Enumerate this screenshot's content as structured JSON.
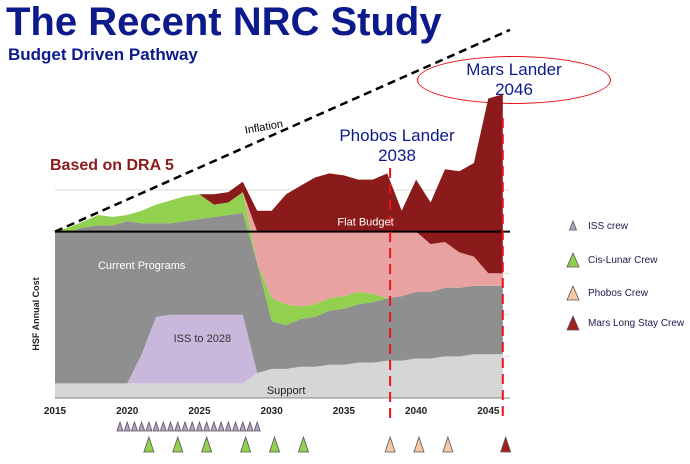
{
  "title": "The Recent NRC Study",
  "subtitle": "Budget Driven Pathway",
  "callouts": {
    "mars_lander": [
      "Mars Lander",
      "2046"
    ],
    "phobos_lander": [
      "Phobos Lander",
      "2038"
    ],
    "based_on": "Based on DRA 5"
  },
  "chart_data": {
    "type": "area",
    "ylabel": "HSF Annual Cost",
    "x_ticks": [
      "2015",
      "2020",
      "2025",
      "2030",
      "2035",
      "2040",
      "2045"
    ],
    "xlim": [
      2015,
      2046.5
    ],
    "ylim": [
      0,
      100
    ],
    "years": [
      2015,
      2016,
      2017,
      2018,
      2019,
      2020,
      2021,
      2022,
      2023,
      2024,
      2025,
      2026,
      2027,
      2028,
      2029,
      2030,
      2031,
      2032,
      2033,
      2034,
      2035,
      2036,
      2037,
      2038,
      2039,
      2040,
      2041,
      2042,
      2043,
      2044,
      2045,
      2046
    ],
    "stacked_series": [
      {
        "name": "Support",
        "color": "#d6d6d6",
        "values": [
          7,
          7,
          7,
          7,
          7,
          7,
          7,
          7,
          7,
          7,
          7,
          7,
          7,
          7,
          12,
          14,
          14,
          15,
          15,
          16,
          16,
          17,
          17,
          18,
          18,
          19,
          19,
          20,
          20,
          21,
          21,
          21
        ]
      },
      {
        "name": "ISS to 2028",
        "color": "#c9b8dc",
        "values": [
          0,
          0,
          0,
          0,
          0,
          0,
          14,
          32,
          33,
          33,
          33,
          33,
          33,
          33,
          0,
          0,
          0,
          0,
          0,
          0,
          0,
          0,
          0,
          0,
          0,
          0,
          0,
          0,
          0,
          0,
          0,
          0
        ]
      },
      {
        "name": "Current Programs",
        "color": "#8f8f8f",
        "values": [
          73,
          73,
          75,
          76,
          76,
          78,
          63,
          45,
          44,
          45,
          46,
          47,
          48,
          49,
          53,
          23,
          21,
          23,
          24,
          26,
          27,
          28,
          29,
          30,
          31,
          32,
          32,
          33,
          33,
          33,
          33,
          33
        ]
      },
      {
        "name": "Cis-Lunar Crew",
        "color": "#92d050",
        "values": [
          0,
          2,
          3,
          5,
          4,
          3,
          6,
          9,
          11,
          12,
          12,
          6,
          6,
          10,
          0,
          11,
          10,
          6,
          6,
          6,
          6,
          6,
          4,
          0,
          0,
          0,
          0,
          0,
          0,
          0,
          0,
          0
        ]
      },
      {
        "name": "Flat Budget",
        "color": "#e8a3a0",
        "values": [
          0,
          0,
          0,
          0,
          0,
          0,
          0,
          0,
          0,
          0,
          0,
          0,
          0,
          0,
          15,
          32,
          35,
          36,
          35,
          32,
          31,
          29,
          30,
          32,
          31,
          29,
          23,
          22,
          17,
          14,
          6,
          6
        ]
      },
      {
        "name": "Mars Long Stay Crew",
        "color": "#8b1a1a",
        "values": [
          0,
          0,
          0,
          0,
          0,
          0,
          0,
          0,
          0,
          0,
          0,
          5,
          5,
          5,
          10,
          10,
          18,
          22,
          26,
          28,
          27,
          25,
          25,
          28,
          10,
          25,
          20,
          35,
          39,
          45,
          84,
          86
        ]
      }
    ],
    "lines": [
      {
        "name": "Flat Budget",
        "color": "#000000",
        "style": "solid",
        "values": [
          80,
          80
        ]
      },
      {
        "name": "Inflation",
        "color": "#000000",
        "style": "dashed",
        "values": [
          80,
          177
        ]
      }
    ],
    "milestones": [
      {
        "year": 2038.2,
        "color": "#e8141c",
        "style": "dashed"
      },
      {
        "year": 2046,
        "color": "#e8141c",
        "style": "dashed"
      }
    ],
    "area_labels": [
      {
        "text": "Inflation",
        "series": "Inflation"
      },
      {
        "text": "Flat Budget",
        "series": "Flat Budget"
      },
      {
        "text": "Current Programs",
        "series": "Current Programs"
      },
      {
        "text": "ISS to 2028",
        "series": "ISS to 2028"
      },
      {
        "text": "Support",
        "series": "Support"
      }
    ],
    "mission_markers": {
      "iss_crew": [
        2019.5,
        2020,
        2020.5,
        2021,
        2021.5,
        2022,
        2022.5,
        2023,
        2023.5,
        2024,
        2024.5,
        2025,
        2025.5,
        2026,
        2026.5,
        2027,
        2027.5,
        2028,
        2028.5,
        2029
      ],
      "cis_lunar_crew": [
        2021.5,
        2023.5,
        2025.5,
        2028.2,
        2030.2,
        2032.2
      ],
      "phobos_crew": [
        2038.2,
        2040.2,
        2042.2
      ],
      "mars_long_stay_crew": [
        2046.2
      ]
    },
    "legend": [
      {
        "label": "ISS crew",
        "color": "#b3a2c7",
        "size": "small",
        "key": "iss_crew"
      },
      {
        "label": "Cis-Lunar Crew",
        "color": "#92d050",
        "size": "large",
        "key": "cis_lunar_crew"
      },
      {
        "label": "Phobos Crew",
        "color": "#f6c8a6",
        "size": "large",
        "key": "phobos_crew"
      },
      {
        "label": "Mars Long Stay Crew",
        "color": "#a31f1f",
        "size": "large",
        "key": "mars_long_stay_crew"
      }
    ]
  }
}
